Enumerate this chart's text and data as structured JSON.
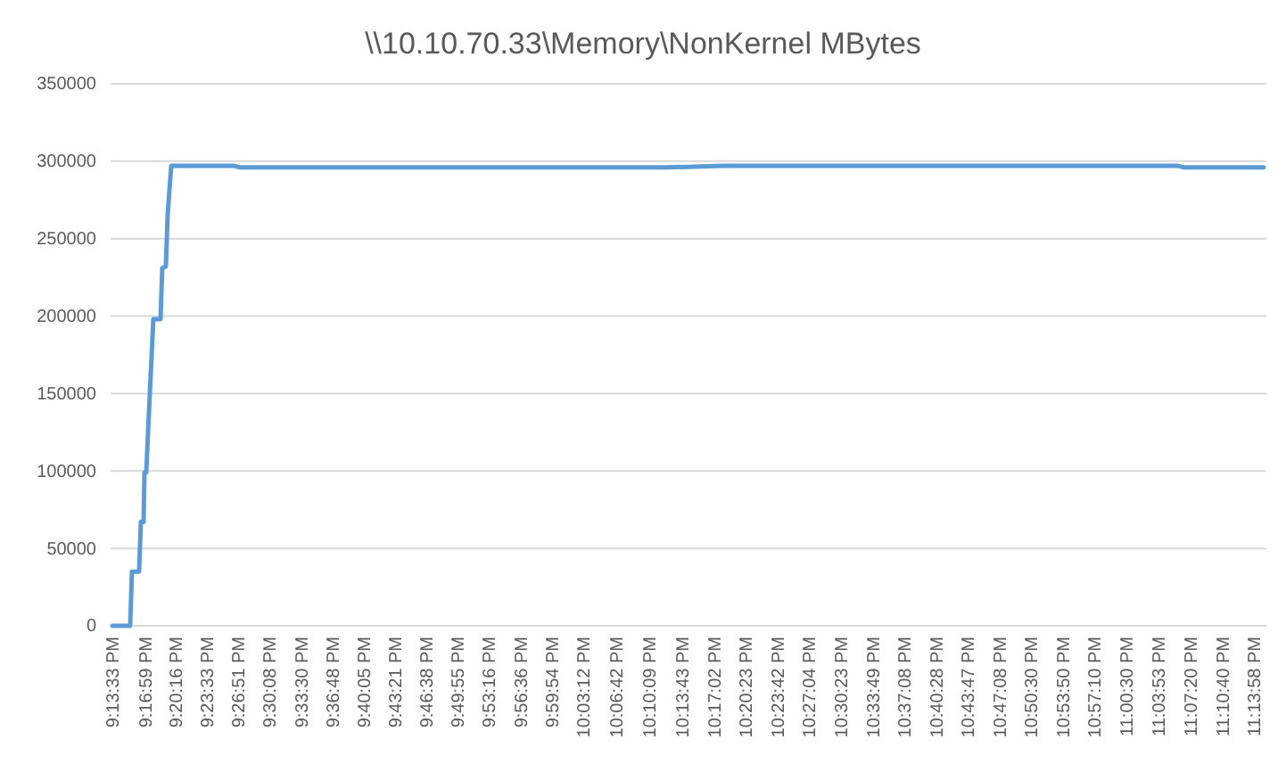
{
  "chart_data": {
    "type": "line",
    "title": "\\\\10.10.70.33\\Memory\\NonKernel MBytes",
    "series": [
      {
        "color": "#5b9bd5",
        "x": [
          21.2258,
          21.257,
          21.2602,
          21.2727,
          21.2759,
          21.2806,
          21.2822,
          21.2853,
          21.2916,
          21.2978,
          21.3104,
          21.3135,
          21.3198,
          21.3229,
          21.3292,
          21.44,
          21.45,
          22.2,
          22.3,
          23.1,
          23.11,
          23.25
        ],
        "values": [
          0,
          0,
          35000,
          35000,
          67000,
          67000,
          99000,
          99000,
          150000,
          198000,
          198000,
          231000,
          232000,
          265000,
          297000,
          297000,
          296000,
          296000,
          297000,
          297000,
          296000,
          296000
        ]
      }
    ],
    "xlim": [
      21.2226,
      23.255
    ],
    "xticks": [
      {
        "value": 21.2258,
        "label": "9:13:33 PM"
      },
      {
        "value": 21.2831,
        "label": "9:16:59 PM"
      },
      {
        "value": 21.3378,
        "label": "9:20:16 PM"
      },
      {
        "value": 21.3925,
        "label": "9:23:33 PM"
      },
      {
        "value": 21.4475,
        "label": "9:26:51 PM"
      },
      {
        "value": 21.5022,
        "label": "9:30:08 PM"
      },
      {
        "value": 21.5583,
        "label": "9:33:30 PM"
      },
      {
        "value": 21.6133,
        "label": "9:36:48 PM"
      },
      {
        "value": 21.6681,
        "label": "9:40:05 PM"
      },
      {
        "value": 21.7225,
        "label": "9:43:21 PM"
      },
      {
        "value": 21.7772,
        "label": "9:46:38 PM"
      },
      {
        "value": 21.8319,
        "label": "9:49:55 PM"
      },
      {
        "value": 21.8878,
        "label": "9:53:16 PM"
      },
      {
        "value": 21.9433,
        "label": "9:56:36 PM"
      },
      {
        "value": 21.9983,
        "label": "9:59:54 PM"
      },
      {
        "value": 22.0533,
        "label": "10:03:12 PM"
      },
      {
        "value": 22.1117,
        "label": "10:06:42 PM"
      },
      {
        "value": 22.1692,
        "label": "10:10:09 PM"
      },
      {
        "value": 22.2286,
        "label": "10:13:43 PM"
      },
      {
        "value": 22.2839,
        "label": "10:17:02 PM"
      },
      {
        "value": 22.3397,
        "label": "10:20:23 PM"
      },
      {
        "value": 22.395,
        "label": "10:23:42 PM"
      },
      {
        "value": 22.4511,
        "label": "10:27:04 PM"
      },
      {
        "value": 22.5064,
        "label": "10:30:23 PM"
      },
      {
        "value": 22.5636,
        "label": "10:33:49 PM"
      },
      {
        "value": 22.6189,
        "label": "10:37:08 PM"
      },
      {
        "value": 22.6744,
        "label": "10:40:28 PM"
      },
      {
        "value": 22.7297,
        "label": "10:43:47 PM"
      },
      {
        "value": 22.7856,
        "label": "10:47:08 PM"
      },
      {
        "value": 22.8417,
        "label": "10:50:30 PM"
      },
      {
        "value": 22.8972,
        "label": "10:53:50 PM"
      },
      {
        "value": 22.9528,
        "label": "10:57:10 PM"
      },
      {
        "value": 23.0083,
        "label": "11:00:30 PM"
      },
      {
        "value": 23.0647,
        "label": "11:03:53 PM"
      },
      {
        "value": 23.1222,
        "label": "11:07:20 PM"
      },
      {
        "value": 23.1778,
        "label": "11:10:40 PM"
      },
      {
        "value": 23.2328,
        "label": "11:13:58 PM"
      }
    ],
    "ylim": [
      0,
      350000
    ],
    "yticks": [
      0,
      50000,
      100000,
      150000,
      200000,
      250000,
      300000,
      350000
    ],
    "grid": "y",
    "legend": false,
    "marker": "none",
    "line_style": "solid"
  }
}
